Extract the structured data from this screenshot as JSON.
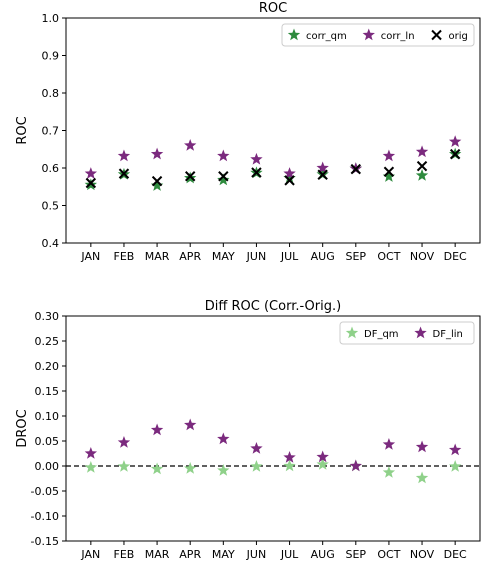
{
  "chart_data": [
    {
      "type": "scatter",
      "title": "ROC",
      "xlabel": "",
      "ylabel": "ROC",
      "ylim": [
        0.4,
        1.0
      ],
      "yticks": [
        0.4,
        0.5,
        0.6,
        0.7,
        0.8,
        0.9,
        1.0
      ],
      "ytick_labels": [
        "0.4",
        "0.5",
        "0.6",
        "0.7",
        "0.8",
        "0.9",
        "1.0"
      ],
      "categories": [
        "JAN",
        "FEB",
        "MAR",
        "APR",
        "MAY",
        "JUN",
        "JUL",
        "AUG",
        "SEP",
        "OCT",
        "NOV",
        "DEC"
      ],
      "legend_position": "top-right",
      "grid": false,
      "series": [
        {
          "name": "corr_qm",
          "marker": "star",
          "color": "#2e8b3e",
          "values": [
            0.555,
            0.583,
            0.553,
            0.573,
            0.568,
            0.587,
            0.573,
            0.583,
            0.598,
            0.577,
            0.58,
            0.637
          ]
        },
        {
          "name": "corr_ln",
          "marker": "star",
          "color": "#7b2a7e",
          "values": [
            0.585,
            0.632,
            0.637,
            0.66,
            0.632,
            0.623,
            0.585,
            0.6,
            0.598,
            0.632,
            0.643,
            0.67
          ]
        },
        {
          "name": "orig",
          "marker": "x",
          "color": "#000000",
          "values": [
            0.56,
            0.585,
            0.565,
            0.578,
            0.578,
            0.588,
            0.567,
            0.582,
            0.597,
            0.59,
            0.605,
            0.637
          ]
        }
      ]
    },
    {
      "type": "scatter",
      "title": "Diff ROC (Corr.-Orig.)",
      "xlabel": "",
      "ylabel": "DROC",
      "ylim": [
        -0.15,
        0.3
      ],
      "yticks": [
        -0.15,
        -0.1,
        -0.05,
        0.0,
        0.05,
        0.1,
        0.15,
        0.2,
        0.25,
        0.3
      ],
      "ytick_labels": [
        "-0.15",
        "-0.10",
        "-0.05",
        "0.00",
        "0.05",
        "0.10",
        "0.15",
        "0.20",
        "0.25",
        "0.30"
      ],
      "categories": [
        "JAN",
        "FEB",
        "MAR",
        "APR",
        "MAY",
        "JUN",
        "JUL",
        "AUG",
        "SEP",
        "OCT",
        "NOV",
        "DEC"
      ],
      "legend_position": "top-right",
      "grid": false,
      "zero_line": {
        "y": 0.0,
        "style": "dashed",
        "color": "#000000"
      },
      "series": [
        {
          "name": "DF_qm",
          "marker": "star",
          "color": "#8fd18a",
          "values": [
            -0.003,
            -0.001,
            -0.006,
            -0.005,
            -0.009,
            -0.001,
            0.0,
            0.003,
            0.0,
            -0.013,
            -0.024,
            -0.001
          ]
        },
        {
          "name": "DF_lin",
          "marker": "star",
          "color": "#7b2a7e",
          "values": [
            0.025,
            0.047,
            0.072,
            0.082,
            0.054,
            0.035,
            0.017,
            0.018,
            0.0,
            0.043,
            0.038,
            0.032
          ]
        }
      ]
    }
  ]
}
